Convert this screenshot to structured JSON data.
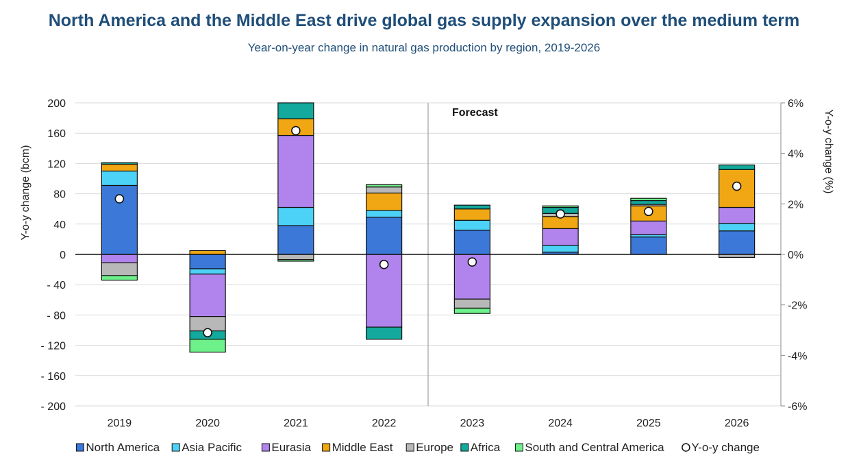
{
  "title": "North America and the Middle East drive global gas supply expansion over the medium term",
  "subtitle": "Year-on-year change in natural gas production by region, 2019-2026",
  "chart_data": {
    "type": "bar",
    "stacked": true,
    "categories": [
      "2019",
      "2020",
      "2021",
      "2022",
      "2023",
      "2024",
      "2025",
      "2026"
    ],
    "ylabel": "Y-o-y change (bcm)",
    "ylabel_right": "Y-o-y change (%)",
    "ylim": [
      -200,
      200
    ],
    "y2lim": [
      -6,
      6
    ],
    "yticks": [
      "200",
      "160",
      "120",
      "80",
      "40",
      "0",
      "- 40",
      "- 80",
      "- 120",
      "- 160",
      "- 200"
    ],
    "y2ticks": [
      "6%",
      "4%",
      "2%",
      "0%",
      "-2%",
      "-4%",
      "-6%"
    ],
    "annotation": "Forecast",
    "grid": true,
    "legend_position": "bottom",
    "series": [
      {
        "name": "North America",
        "color": "#3b78d8",
        "values": [
          91,
          -19,
          38,
          49,
          32,
          3,
          23,
          31
        ]
      },
      {
        "name": "Asia Pacific",
        "color": "#4dd2f7",
        "values": [
          19,
          -7,
          24,
          9,
          13,
          9,
          3,
          10
        ]
      },
      {
        "name": "Eurasia",
        "color": "#b084ec",
        "values": [
          -11,
          -56,
          95,
          -96,
          -59,
          22,
          18,
          21
        ]
      },
      {
        "name": "Middle East",
        "color": "#f0a713",
        "values": [
          9,
          5,
          22,
          23,
          15,
          16,
          20,
          50
        ]
      },
      {
        "name": "Europe",
        "color": "#b8b8b8",
        "values": [
          -17,
          -19,
          -7,
          8,
          -12,
          4,
          2,
          -4
        ]
      },
      {
        "name": "Africa",
        "color": "#13a99c",
        "values": [
          2,
          -11,
          21,
          -16,
          5,
          8,
          5,
          6
        ]
      },
      {
        "name": "South and Central America",
        "color": "#6ef08a",
        "values": [
          -6,
          -17,
          -2,
          3,
          -7,
          2,
          3,
          0
        ]
      }
    ],
    "line_series": {
      "name": "Y-o-y change",
      "axis": "right",
      "values": [
        2.2,
        -3.1,
        4.9,
        -0.4,
        -0.3,
        1.6,
        1.7,
        2.7
      ]
    }
  }
}
